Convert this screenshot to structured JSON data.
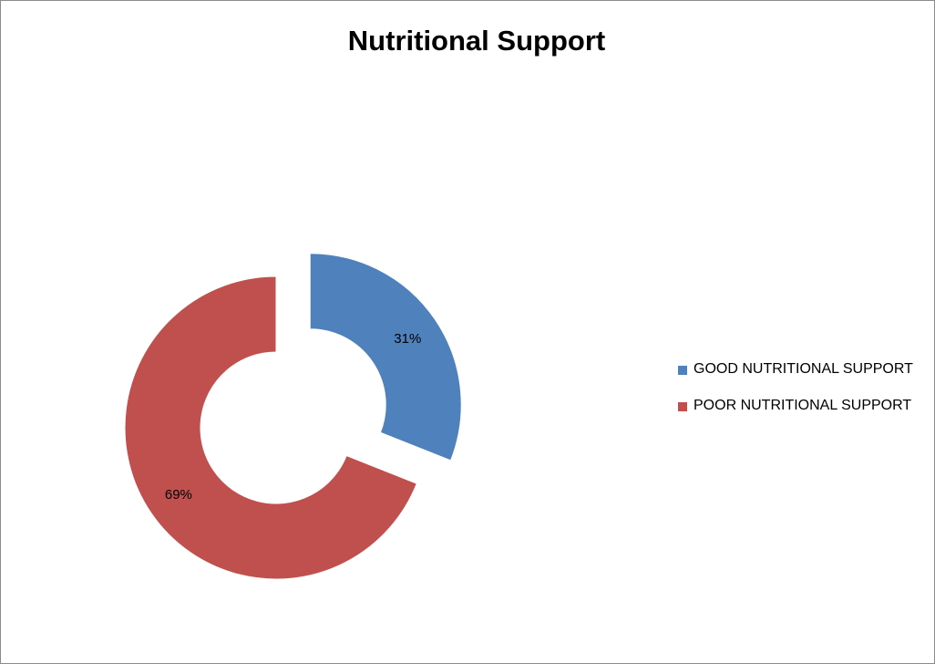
{
  "chart_data": {
    "type": "pie",
    "variant": "exploded doughnut",
    "title": "Nutritional Support",
    "labels": [
      "GOOD NUTRITIONAL SUPPORT",
      "POOR NUTRITIONAL SUPPORT"
    ],
    "values": [
      31,
      69
    ],
    "data_labels": [
      "31%",
      "69%"
    ],
    "colors": [
      "#4f81bd",
      "#c0504d"
    ],
    "legend_position": "right"
  }
}
